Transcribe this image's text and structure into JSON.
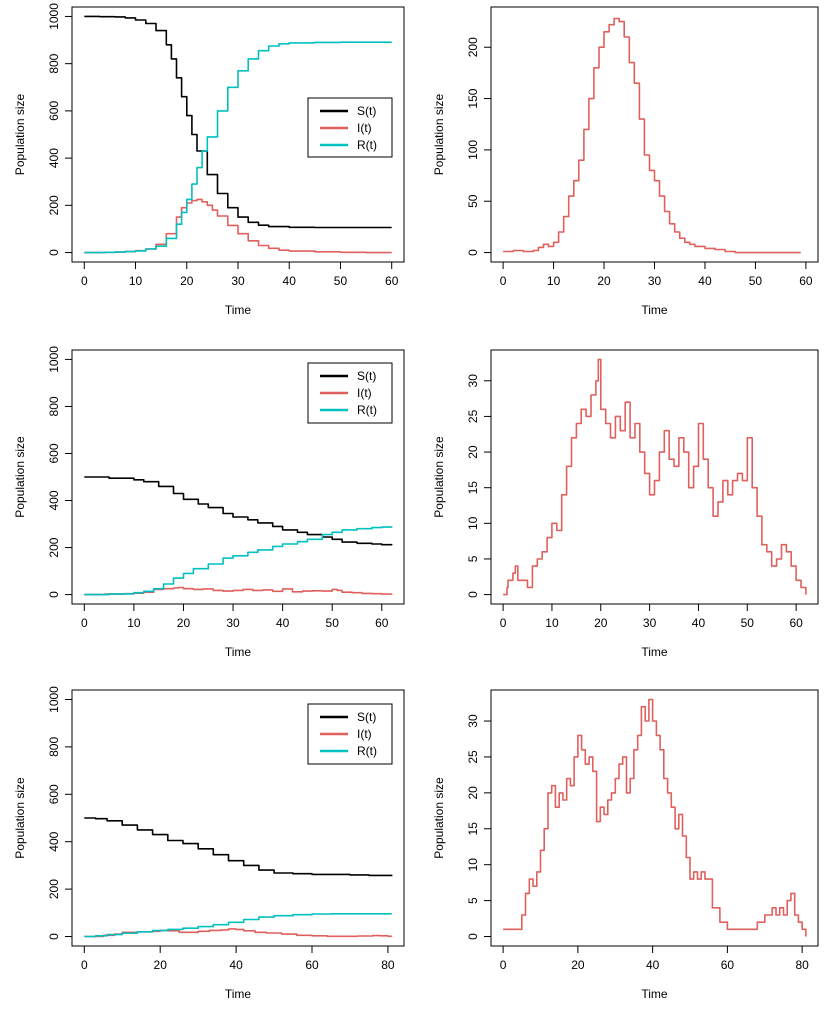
{
  "chart_data": [
    {
      "type": "line",
      "xlabel": "Time",
      "ylabel": "Population size",
      "xlim": [
        0,
        60
      ],
      "ylim": [
        0,
        1000
      ],
      "xticks": [
        "0",
        "10",
        "20",
        "30",
        "40",
        "50",
        "60"
      ],
      "yticks": [
        "0",
        "200",
        "400",
        "600",
        "800",
        "1000"
      ],
      "grid": false,
      "legend": "right",
      "series": [
        {
          "name": "S(t)",
          "color": "#000000",
          "x": [
            0,
            3,
            6,
            8,
            10,
            12,
            14,
            16,
            17,
            18,
            19,
            20,
            21,
            22,
            24,
            26,
            28,
            30,
            32,
            34,
            36,
            40,
            45,
            50,
            55,
            60
          ],
          "y": [
            1000,
            999,
            998,
            994,
            985,
            970,
            940,
            880,
            820,
            740,
            660,
            580,
            500,
            430,
            330,
            250,
            190,
            150,
            128,
            116,
            110,
            107,
            106,
            106,
            106,
            106
          ]
        },
        {
          "name": "I(t)",
          "color": "#e0605e",
          "x": [
            0,
            4,
            6,
            8,
            10,
            12,
            14,
            16,
            18,
            19,
            20,
            21,
            22,
            23,
            24,
            25,
            26,
            28,
            30,
            32,
            34,
            36,
            38,
            40,
            45,
            50,
            55,
            60
          ],
          "y": [
            0,
            1,
            2,
            4,
            8,
            15,
            35,
            80,
            150,
            190,
            210,
            220,
            225,
            215,
            200,
            180,
            155,
            115,
            80,
            50,
            30,
            18,
            10,
            6,
            3,
            1,
            0,
            0
          ]
        },
        {
          "name": "R(t)",
          "color": "#00c0c0",
          "x": [
            0,
            4,
            6,
            8,
            10,
            12,
            14,
            16,
            18,
            19,
            20,
            21,
            22,
            23,
            24,
            26,
            28,
            30,
            32,
            34,
            36,
            38,
            40,
            45,
            50,
            55,
            60
          ],
          "y": [
            0,
            1,
            2,
            4,
            7,
            15,
            27,
            60,
            120,
            170,
            225,
            290,
            360,
            430,
            490,
            600,
            700,
            770,
            820,
            855,
            875,
            884,
            888,
            890,
            891,
            891,
            891
          ]
        }
      ]
    },
    {
      "type": "line",
      "xlabel": "Time",
      "ylabel": "Population size",
      "xlim": [
        0,
        60
      ],
      "ylim": [
        0,
        230
      ],
      "xticks": [
        "0",
        "10",
        "20",
        "30",
        "40",
        "50",
        "60"
      ],
      "yticks": [
        "0",
        "50",
        "100",
        "150",
        "200"
      ],
      "grid": false,
      "series": [
        {
          "name": "",
          "color": "#e0605e",
          "x": [
            0,
            2,
            4,
            6,
            7,
            8,
            9,
            10,
            11,
            12,
            13,
            14,
            15,
            16,
            17,
            18,
            19,
            20,
            21,
            22,
            23,
            24,
            25,
            26,
            27,
            28,
            29,
            30,
            31,
            32,
            33,
            34,
            35,
            36,
            37,
            38,
            40,
            42,
            44,
            46,
            50,
            55,
            59
          ],
          "y": [
            1,
            2,
            1,
            2,
            5,
            8,
            6,
            10,
            20,
            35,
            55,
            70,
            90,
            120,
            150,
            180,
            200,
            215,
            222,
            228,
            225,
            210,
            185,
            165,
            130,
            95,
            80,
            70,
            55,
            40,
            28,
            20,
            14,
            10,
            8,
            6,
            4,
            3,
            1,
            0,
            0,
            0,
            0
          ]
        }
      ]
    },
    {
      "type": "line",
      "xlabel": "Time",
      "ylabel": "Population size",
      "xlim": [
        0,
        62
      ],
      "ylim": [
        0,
        1000
      ],
      "xticks": [
        "0",
        "10",
        "20",
        "30",
        "40",
        "50",
        "60"
      ],
      "yticks": [
        "0",
        "200",
        "400",
        "600",
        "800",
        "1000"
      ],
      "grid": false,
      "legend": "top-right",
      "series": [
        {
          "name": "S(t)",
          "color": "#000000",
          "x": [
            0,
            5,
            10,
            12,
            15,
            18,
            20,
            23,
            25,
            28,
            30,
            33,
            35,
            38,
            40,
            43,
            45,
            48,
            50,
            52,
            55,
            58,
            60,
            62
          ],
          "y": [
            500,
            495,
            488,
            480,
            460,
            430,
            405,
            385,
            370,
            345,
            330,
            318,
            305,
            290,
            275,
            265,
            255,
            245,
            235,
            223,
            218,
            215,
            212,
            210
          ]
        },
        {
          "name": "I(t)",
          "color": "#e0605e",
          "x": [
            0,
            4,
            8,
            10,
            12,
            14,
            16,
            18,
            19,
            20,
            22,
            24,
            26,
            28,
            30,
            32,
            34,
            36,
            38,
            40,
            42,
            44,
            46,
            48,
            50,
            51,
            52,
            54,
            56,
            58,
            60,
            62
          ],
          "y": [
            0,
            2,
            4,
            6,
            10,
            22,
            25,
            28,
            30,
            25,
            22,
            24,
            18,
            15,
            18,
            22,
            18,
            20,
            14,
            24,
            12,
            15,
            16,
            15,
            22,
            18,
            10,
            8,
            5,
            4,
            2,
            0
          ]
        },
        {
          "name": "R(t)",
          "color": "#00c0c0",
          "x": [
            0,
            5,
            10,
            12,
            14,
            16,
            18,
            20,
            22,
            25,
            28,
            30,
            33,
            35,
            38,
            40,
            43,
            45,
            48,
            50,
            52,
            55,
            58,
            60,
            62
          ],
          "y": [
            0,
            3,
            8,
            14,
            25,
            45,
            70,
            90,
            110,
            130,
            155,
            165,
            180,
            190,
            205,
            215,
            225,
            235,
            255,
            265,
            275,
            280,
            285,
            287,
            290
          ]
        }
      ]
    },
    {
      "type": "line",
      "xlabel": "Time",
      "ylabel": "Population size",
      "xlim": [
        0,
        62
      ],
      "ylim": [
        0,
        33
      ],
      "xticks": [
        "0",
        "10",
        "20",
        "30",
        "40",
        "50",
        "60"
      ],
      "yticks": [
        "0",
        "5",
        "10",
        "15",
        "20",
        "25",
        "30"
      ],
      "grid": false,
      "series": [
        {
          "name": "",
          "color": "#e0605e",
          "x": [
            0,
            0.8,
            1,
            2,
            2.5,
            3,
            4,
            5,
            6,
            7,
            8,
            9,
            10,
            11,
            12,
            13,
            14,
            15,
            16,
            17,
            18,
            19,
            19.5,
            20,
            21,
            22,
            23,
            24,
            25,
            26,
            27,
            28,
            29,
            30,
            31,
            32,
            33,
            34,
            35,
            36,
            37,
            38,
            39,
            40,
            41,
            42,
            43,
            44,
            45,
            46,
            47,
            48,
            49,
            50,
            51,
            52,
            53,
            54,
            55,
            56,
            57,
            58,
            59,
            60,
            61,
            62
          ],
          "y": [
            0,
            1,
            2,
            3,
            4,
            2,
            2,
            1,
            4,
            5,
            6,
            8,
            10,
            9,
            14,
            18,
            22,
            24,
            26,
            25,
            28,
            30,
            33,
            26,
            24,
            22,
            25,
            23,
            27,
            22,
            24,
            20,
            17,
            14,
            16,
            20,
            23,
            19,
            18,
            22,
            20,
            15,
            18,
            24,
            19,
            15,
            11,
            13,
            16,
            14,
            16,
            17,
            16,
            22,
            15,
            11,
            7,
            6,
            4,
            5,
            7,
            6,
            4,
            2,
            1,
            0
          ]
        }
      ]
    },
    {
      "type": "line",
      "xlabel": "Time",
      "ylabel": "Population size",
      "xlim": [
        0,
        81
      ],
      "ylim": [
        0,
        1000
      ],
      "xticks": [
        "0",
        "20",
        "40",
        "60",
        "80"
      ],
      "yticks": [
        "0",
        "200",
        "400",
        "600",
        "800",
        "1000"
      ],
      "grid": false,
      "legend": "top-right",
      "series": [
        {
          "name": "S(t)",
          "color": "#000000",
          "x": [
            0,
            3,
            6,
            10,
            14,
            18,
            22,
            26,
            30,
            34,
            38,
            42,
            46,
            50,
            55,
            60,
            65,
            70,
            75,
            81
          ],
          "y": [
            500,
            497,
            488,
            470,
            450,
            430,
            405,
            392,
            370,
            345,
            320,
            300,
            280,
            268,
            265,
            262,
            262,
            260,
            258,
            255
          ]
        },
        {
          "name": "I(t)",
          "color": "#e0605e",
          "x": [
            0,
            3,
            5,
            8,
            10,
            14,
            18,
            20,
            22,
            25,
            28,
            30,
            33,
            36,
            38,
            40,
            42,
            45,
            48,
            52,
            56,
            60,
            64,
            68,
            72,
            76,
            78,
            80,
            81
          ],
          "y": [
            0,
            0,
            5,
            10,
            18,
            20,
            22,
            26,
            24,
            18,
            18,
            22,
            26,
            28,
            32,
            30,
            24,
            18,
            15,
            10,
            5,
            3,
            1,
            1,
            2,
            4,
            3,
            1,
            0
          ]
        },
        {
          "name": "R(t)",
          "color": "#00c0c0",
          "x": [
            0,
            3,
            6,
            10,
            14,
            18,
            22,
            26,
            30,
            34,
            38,
            42,
            46,
            50,
            55,
            60,
            65,
            70,
            75,
            81
          ],
          "y": [
            0,
            3,
            8,
            14,
            20,
            25,
            30,
            35,
            42,
            50,
            60,
            72,
            82,
            88,
            92,
            95,
            96,
            96,
            96,
            96
          ]
        }
      ]
    },
    {
      "type": "line",
      "xlabel": "Time",
      "ylabel": "Population size",
      "xlim": [
        0,
        81
      ],
      "ylim": [
        0,
        33
      ],
      "xticks": [
        "0",
        "20",
        "40",
        "60",
        "80"
      ],
      "yticks": [
        "0",
        "5",
        "10",
        "15",
        "20",
        "25",
        "30"
      ],
      "grid": false,
      "series": [
        {
          "name": "",
          "color": "#e0605e",
          "x": [
            0,
            2,
            4,
            5,
            6,
            7,
            8,
            9,
            10,
            11,
            12,
            13,
            14,
            15,
            16,
            17,
            18,
            19,
            20,
            21,
            22,
            23,
            24,
            25,
            26,
            27,
            28,
            29,
            30,
            31,
            32,
            33,
            34,
            35,
            36,
            37,
            38,
            39,
            40,
            41,
            42,
            43,
            44,
            45,
            46,
            47,
            48,
            49,
            50,
            51,
            52,
            53,
            54,
            56,
            58,
            60,
            62,
            64,
            66,
            68,
            70,
            72,
            73,
            74,
            75,
            76,
            77,
            78,
            79,
            80,
            81
          ],
          "y": [
            1,
            1,
            1,
            3,
            6,
            8,
            7,
            9,
            12,
            15,
            20,
            21,
            18,
            20,
            19,
            22,
            21,
            25,
            28,
            26,
            24,
            25,
            23,
            16,
            18,
            17,
            19,
            20,
            22,
            24,
            25,
            20,
            22,
            26,
            28,
            32,
            30,
            33,
            30,
            28,
            26,
            22,
            20,
            18,
            15,
            17,
            14,
            11,
            8,
            9,
            8,
            9,
            8,
            4,
            2,
            1,
            1,
            1,
            1,
            2,
            3,
            4,
            3,
            4,
            3,
            5,
            6,
            3,
            2,
            1,
            0
          ]
        }
      ]
    }
  ]
}
